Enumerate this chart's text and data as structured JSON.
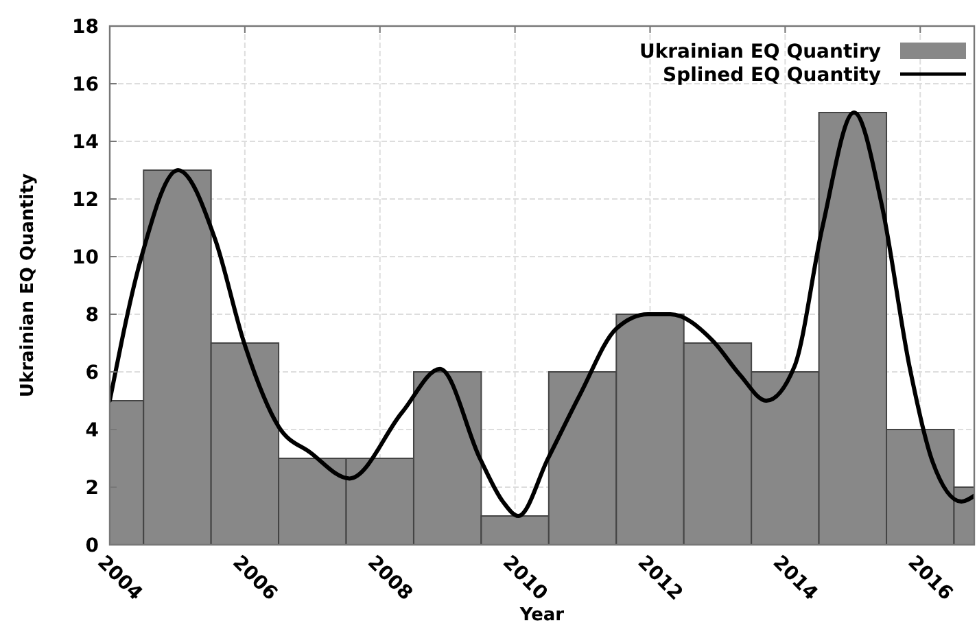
{
  "chart_data": {
    "type": "histogram",
    "xlabel": "Year",
    "ylabel": "Ukrainian EQ Quantity",
    "bins": [
      2003.5,
      2004.5,
      2005.5,
      2006.5,
      2007.5,
      2008.5,
      2009.5,
      2010.5,
      2011.5,
      2012.5,
      2013.5,
      2014.5,
      2015.5,
      2016.5,
      2017.5
    ],
    "series": [
      {
        "name": "Ukrainian EQ Quantiry",
        "color": "#888888",
        "values": [
          5,
          13,
          7,
          3,
          3,
          6,
          1,
          6,
          8,
          7,
          6,
          15,
          4,
          2
        ]
      },
      {
        "name": "Splined EQ Quantity",
        "type": "line",
        "color": "#000000",
        "x": [
          2004,
          2004.47,
          2005.01,
          2005.56,
          2005.99,
          2006.5,
          2006.97,
          2007.55,
          2008.33,
          2008.89,
          2009.48,
          2009.82,
          2010.05,
          2010.49,
          2010.96,
          2011.5,
          2011.97,
          2012.3,
          2012.92,
          2013.33,
          2013.72,
          2014.14,
          2014.55,
          2015.02,
          2015.43,
          2015.84,
          2016.18,
          2016.61,
          2016.8
        ],
        "values": [
          5,
          10,
          13,
          10.6,
          7,
          4.1,
          3.2,
          2.3,
          4.6,
          6.1,
          3,
          1.5,
          1,
          3,
          5.2,
          7.5,
          8,
          8,
          7.1,
          5.9,
          5,
          6.2,
          11,
          15,
          11.8,
          6.2,
          2.9,
          1.5,
          1.7
        ]
      }
    ],
    "xlim": [
      2004,
      2016.8
    ],
    "xticks": [
      2004,
      2006,
      2008,
      2010,
      2012,
      2014,
      2016
    ],
    "ylim": [
      0,
      18
    ],
    "yticks": [
      0,
      2,
      4,
      6,
      8,
      10,
      12,
      14,
      16,
      18
    ],
    "grid": true,
    "legend": "top right",
    "marker": "none",
    "line_style": "solid"
  }
}
